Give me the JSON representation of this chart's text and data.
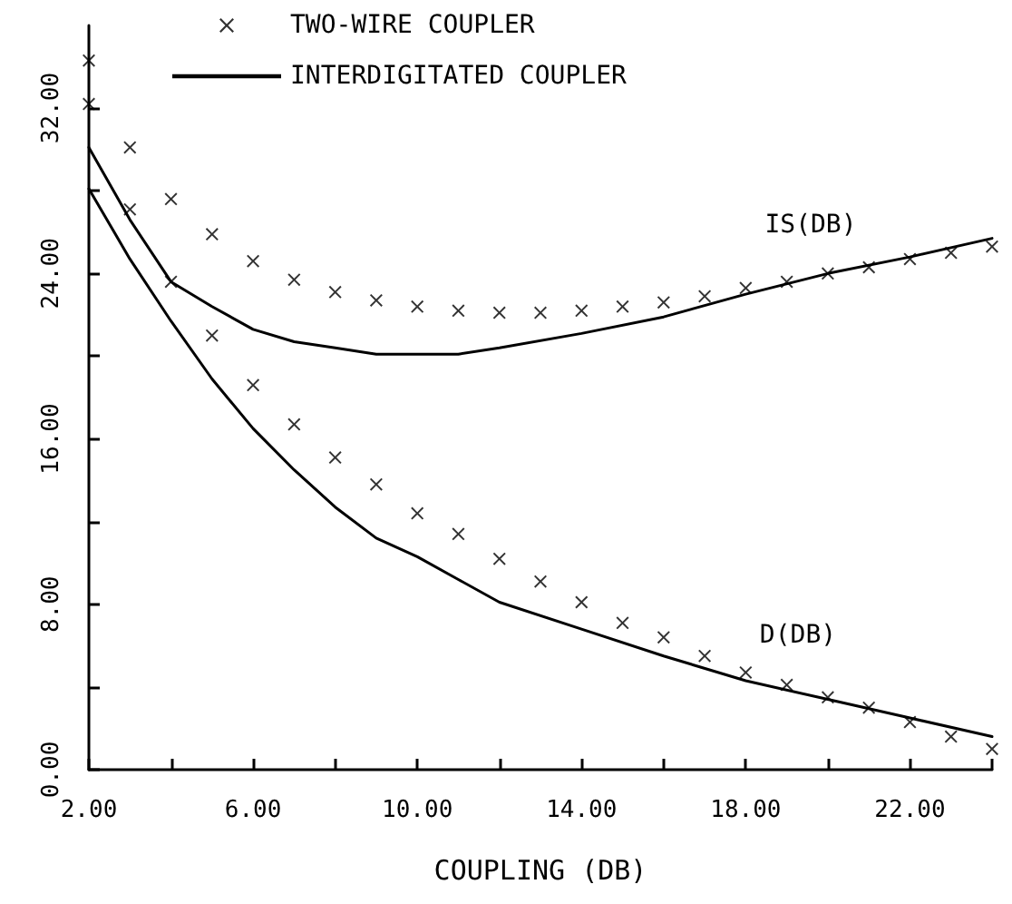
{
  "chart_data": {
    "type": "line",
    "xlabel": "COUPLING (DB)",
    "xlim": [
      2,
      24
    ],
    "xticks": [
      {
        "value": 2,
        "label": "2.00"
      },
      {
        "value": 4,
        "label": null
      },
      {
        "value": 6,
        "label": "6.00"
      },
      {
        "value": 8,
        "label": null
      },
      {
        "value": 10,
        "label": "10.00"
      },
      {
        "value": 12,
        "label": null
      },
      {
        "value": 14,
        "label": "14.00"
      },
      {
        "value": 16,
        "label": null
      },
      {
        "value": 18,
        "label": "18.00"
      },
      {
        "value": 20,
        "label": null
      },
      {
        "value": 22,
        "label": "22.00"
      },
      {
        "value": 24,
        "label": null
      }
    ],
    "ylim": [
      0,
      36
    ],
    "yticks": [
      {
        "value": 0,
        "label": "0.00"
      },
      {
        "value": 4,
        "label": null
      },
      {
        "value": 8,
        "label": "8.00"
      },
      {
        "value": 12,
        "label": null
      },
      {
        "value": 16,
        "label": "16.00"
      },
      {
        "value": 20,
        "label": null
      },
      {
        "value": 24,
        "label": "24.00"
      },
      {
        "value": 28,
        "label": null
      },
      {
        "value": 32,
        "label": "32.00"
      }
    ],
    "grid": false,
    "legend": "top",
    "annotations": [
      "IS(DB)",
      "D(DB)"
    ],
    "series": [
      {
        "name": "TWO-WIRE COUPLER",
        "type": "scatter",
        "marker": "cross",
        "color": "#000000",
        "x": [
          2,
          3,
          4,
          5,
          6,
          7,
          8,
          9,
          10,
          11,
          12,
          13,
          14,
          15,
          16,
          17,
          18,
          19,
          20,
          21,
          22,
          23,
          24
        ],
        "values": [
          34.3,
          30.1,
          27.6,
          25.9,
          24.6,
          23.7,
          23.1,
          22.7,
          22.4,
          22.2,
          22.1,
          22.1,
          22.2,
          22.4,
          22.6,
          22.9,
          23.3,
          23.6,
          24.0,
          24.3,
          24.7,
          25.0,
          25.3
        ]
      },
      {
        "name": "INTERDIGITATED COUPLER",
        "marker": "none",
        "line_style": "solid",
        "color": "#000000",
        "x": [
          2,
          3,
          4,
          5,
          6,
          7,
          8,
          9,
          10,
          11,
          12,
          14,
          16,
          18,
          20,
          22,
          24
        ],
        "values": [
          30.1,
          26.6,
          23.6,
          22.4,
          21.3,
          20.7,
          20.4,
          20.1,
          20.1,
          20.1,
          20.4,
          21.1,
          21.9,
          23.0,
          24.0,
          24.8,
          25.7
        ]
      },
      {
        "type": "scatter",
        "marker": "cross",
        "color": "#000000",
        "x": [
          2,
          3,
          4,
          5,
          6,
          7,
          8,
          9,
          10,
          11,
          12,
          13,
          14,
          15,
          16,
          17,
          18,
          19,
          20,
          21,
          22,
          23,
          24
        ],
        "values": [
          32.2,
          27.1,
          23.6,
          21.0,
          18.6,
          16.7,
          15.1,
          13.8,
          12.4,
          11.4,
          10.2,
          9.1,
          8.1,
          7.1,
          6.4,
          5.5,
          4.7,
          4.1,
          3.5,
          3.0,
          2.3,
          1.6,
          1.0
        ]
      },
      {
        "marker": "none",
        "line_style": "solid",
        "color": "#000000",
        "x": [
          2,
          3,
          4,
          5,
          6,
          7,
          8,
          9,
          10,
          11,
          12,
          14,
          16,
          18,
          20,
          22,
          24
        ],
        "values": [
          28.1,
          24.7,
          21.7,
          18.9,
          16.5,
          14.5,
          12.7,
          11.2,
          10.3,
          9.2,
          8.1,
          6.8,
          5.5,
          4.3,
          3.4,
          2.5,
          1.6
        ]
      }
    ]
  }
}
